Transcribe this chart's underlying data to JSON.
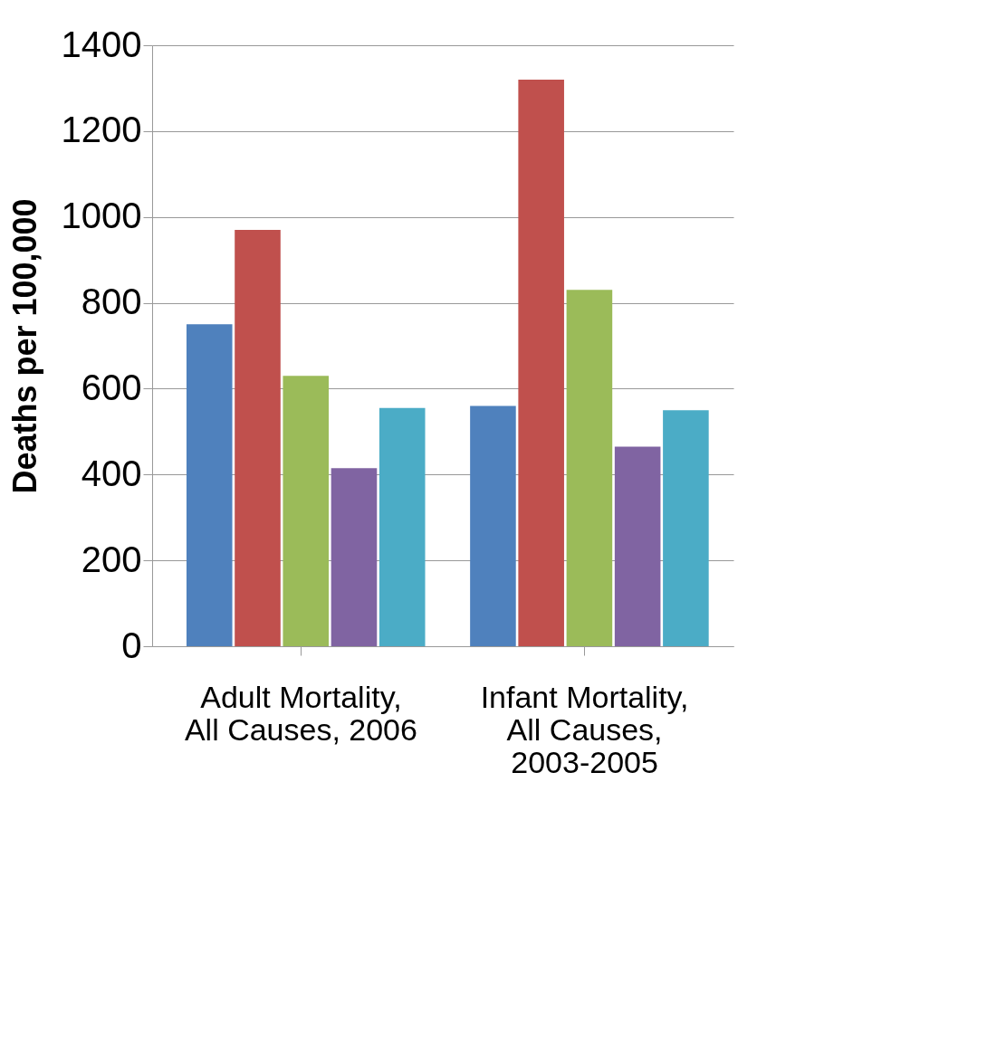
{
  "chart_data": {
    "type": "bar",
    "ylabel": "Deaths per 100,000",
    "categories": [
      "Adult Mortality, All Causes, 2006",
      "Infant Mortality, All Causes, 2003-2005"
    ],
    "series": [
      {
        "color": "#4f81bd",
        "values": [
          750,
          560
        ]
      },
      {
        "color": "#c0504d",
        "values": [
          970,
          1320
        ]
      },
      {
        "color": "#9bbb59",
        "values": [
          630,
          830
        ]
      },
      {
        "color": "#8064a2",
        "values": [
          415,
          465
        ]
      },
      {
        "color": "#4bacc6",
        "values": [
          555,
          550
        ]
      }
    ],
    "ylim": [
      0,
      1400
    ],
    "yticks": [
      0,
      200,
      400,
      600,
      800,
      1000,
      1200,
      1400
    ],
    "grid": "y",
    "legend": false
  }
}
